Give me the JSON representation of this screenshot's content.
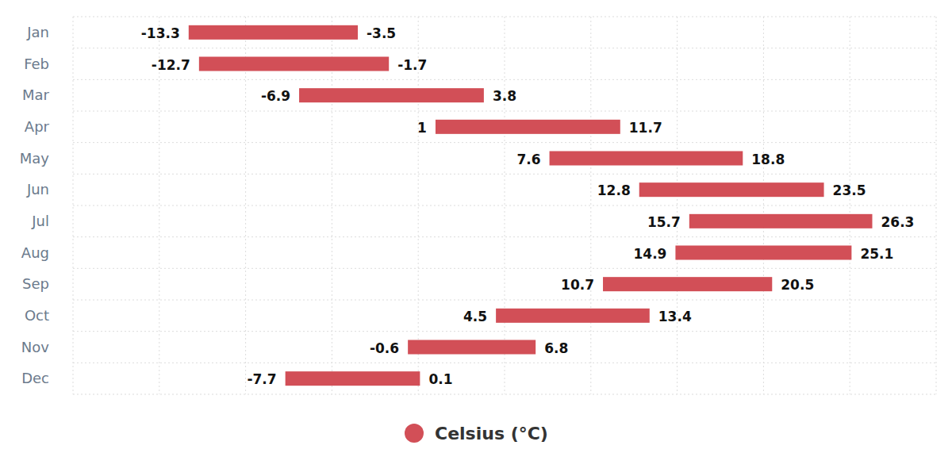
{
  "chart_data": {
    "type": "bar",
    "orientation": "horizontal",
    "categories": [
      "Jan",
      "Feb",
      "Mar",
      "Apr",
      "May",
      "Jun",
      "Jul",
      "Aug",
      "Sep",
      "Oct",
      "Nov",
      "Dec"
    ],
    "series": [
      {
        "name": "Celsius (°C)",
        "color": "#d24f57",
        "values": [
          [
            -13.3,
            -3.5
          ],
          [
            -12.7,
            -1.7
          ],
          [
            -6.9,
            3.8
          ],
          [
            1,
            11.7
          ],
          [
            7.6,
            18.8
          ],
          [
            12.8,
            23.5
          ],
          [
            15.7,
            26.3
          ],
          [
            14.9,
            25.1
          ],
          [
            10.7,
            20.5
          ],
          [
            4.5,
            13.4
          ],
          [
            -0.6,
            6.8
          ],
          [
            -7.7,
            0.1
          ]
        ]
      }
    ],
    "xlim": [
      -20,
      30
    ],
    "xticks": [
      -20,
      -15,
      -10,
      -5,
      0,
      5,
      10,
      15,
      20,
      25,
      30
    ],
    "grid": true,
    "data_labels": true,
    "tick_labels": "y",
    "legend": "bottom"
  }
}
